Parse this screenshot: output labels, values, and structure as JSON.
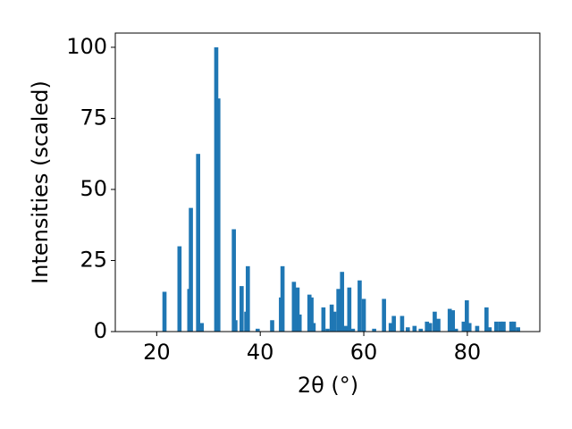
{
  "chart_data": {
    "type": "bar",
    "x_label": "2θ (°)",
    "y_label": "Intensities (scaled)",
    "color": "#1f77b4",
    "x": [
      21.5,
      24.4,
      26.3,
      26.6,
      28.0,
      28.7,
      31.5,
      31.9,
      34.9,
      35.2,
      36.4,
      37.3,
      37.6,
      39.5,
      42.3,
      44.0,
      44.3,
      46.5,
      47.2,
      47.6,
      49.5,
      49.9,
      50.3,
      52.2,
      53.0,
      53.8,
      54.3,
      55.1,
      55.8,
      56.5,
      57.2,
      57.9,
      59.2,
      60.0,
      62.0,
      63.9,
      65.2,
      65.8,
      67.4,
      68.5,
      69.8,
      71.0,
      72.2,
      72.8,
      73.7,
      74.4,
      76.6,
      77.2,
      77.8,
      79.3,
      79.9,
      80.4,
      81.9,
      83.7,
      84.3,
      85.6,
      86.4,
      87.0,
      88.5,
      89.0,
      89.8
    ],
    "values": [
      14,
      30,
      15,
      43.5,
      62.5,
      3,
      100,
      82,
      36,
      4,
      16,
      7,
      23,
      1,
      4,
      12,
      23,
      17.5,
      15.5,
      6,
      13,
      12,
      3,
      8.5,
      1,
      9.5,
      7,
      15,
      21,
      2,
      15.5,
      1,
      18,
      11.5,
      1,
      11.5,
      3,
      5.5,
      5.5,
      1.5,
      2,
      1,
      3.5,
      3,
      7,
      4.5,
      8,
      7.5,
      1,
      3.5,
      11,
      3,
      2,
      8.5,
      1.5,
      3.5,
      3.5,
      3.5,
      3.5,
      3.5,
      1.5
    ],
    "xlim": [
      12,
      94
    ],
    "ylim": [
      0,
      105
    ],
    "xticks": [
      20,
      40,
      60,
      80
    ],
    "yticks": [
      0,
      25,
      50,
      75,
      100
    ]
  }
}
